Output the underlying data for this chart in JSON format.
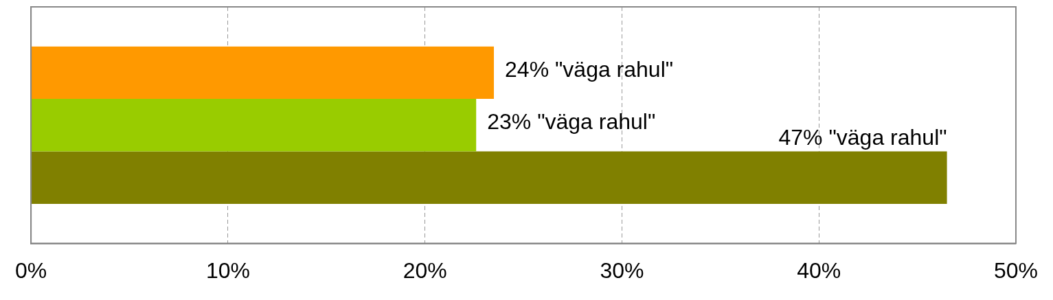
{
  "chart_data": {
    "type": "bar",
    "orientation": "horizontal",
    "categories": [
      null
    ],
    "series": [
      {
        "color": "#ff9900",
        "values": [
          23.5
        ],
        "value_labels": [
          "24% \"väga rahul\""
        ]
      },
      {
        "color": "#99cc00",
        "values": [
          22.6
        ],
        "value_labels": [
          "23% \"väga rahul\""
        ]
      },
      {
        "color": "#808000",
        "values": [
          46.5
        ],
        "value_labels": [
          "47% \"väga rahul\""
        ]
      }
    ],
    "xlim": [
      0,
      50
    ],
    "xticks": [
      {
        "value": 0,
        "label": "0%"
      },
      {
        "value": 10,
        "label": "10%"
      },
      {
        "value": 20,
        "label": "20%"
      },
      {
        "value": 30,
        "label": "30%"
      },
      {
        "value": 40,
        "label": "40%"
      },
      {
        "value": 50,
        "label": "50%"
      }
    ],
    "grid": "x",
    "legend": false,
    "tick_labels": "x"
  }
}
